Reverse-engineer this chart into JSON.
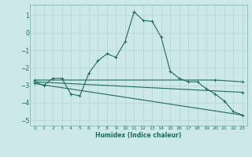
{
  "xlabel": "Humidex (Indice chaleur)",
  "bg_color": "#cce8e8",
  "grid_color": "#b0d4d4",
  "line_color": "#1e6b5e",
  "xlim": [
    -0.5,
    23.5
  ],
  "ylim": [
    -5.3,
    1.6
  ],
  "yticks": [
    1,
    0,
    -1,
    -2,
    -3,
    -4,
    -5
  ],
  "xticks": [
    0,
    1,
    2,
    3,
    4,
    5,
    6,
    7,
    8,
    9,
    10,
    11,
    12,
    13,
    14,
    15,
    16,
    17,
    18,
    19,
    20,
    21,
    22,
    23
  ],
  "series": [
    {
      "x": [
        0,
        1,
        2,
        3,
        4,
        5,
        6,
        7,
        8,
        9,
        10,
        11,
        12,
        13,
        14,
        15,
        16,
        17,
        18,
        19,
        20,
        21,
        22,
        23
      ],
      "y": [
        -2.8,
        -3.0,
        -2.6,
        -2.6,
        -3.5,
        -3.6,
        -2.3,
        -1.6,
        -1.2,
        -1.4,
        -0.5,
        1.2,
        0.7,
        0.65,
        -0.25,
        -2.2,
        -2.6,
        -2.8,
        -2.8,
        -3.2,
        -3.5,
        -3.9,
        -4.5,
        -4.7
      ]
    },
    {
      "x": [
        0,
        20,
        23
      ],
      "y": [
        -2.7,
        -2.7,
        -2.8
      ]
    },
    {
      "x": [
        0,
        23
      ],
      "y": [
        -2.8,
        -3.4
      ]
    },
    {
      "x": [
        0,
        23
      ],
      "y": [
        -2.9,
        -4.7
      ]
    }
  ]
}
